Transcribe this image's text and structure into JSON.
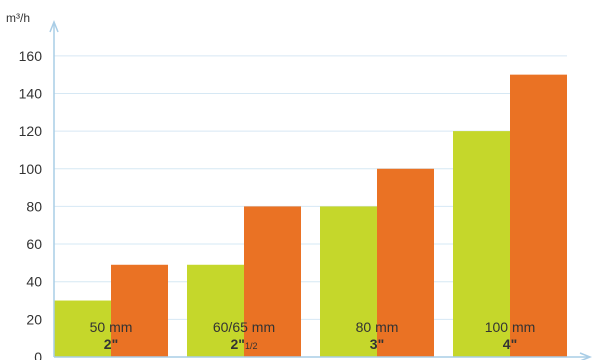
{
  "chart_data": {
    "type": "bar",
    "ylabel": "m³/h",
    "ylim": [
      0,
      170
    ],
    "yticks": [
      0,
      20,
      40,
      60,
      80,
      100,
      120,
      140,
      160
    ],
    "grid": true,
    "categories": [
      {
        "size": "50",
        "unit": "mm",
        "inch": "2\"",
        "fraction": ""
      },
      {
        "size": "60/65",
        "unit": "mm",
        "inch": "2\"",
        "fraction": "1/2"
      },
      {
        "size": "80",
        "unit": "mm",
        "inch": "3\"",
        "fraction": ""
      },
      {
        "size": "100",
        "unit": "mm",
        "inch": "4\"",
        "fraction": ""
      }
    ],
    "series": [
      {
        "values": [
          30,
          49,
          80,
          120
        ],
        "color": "#c5d72b"
      },
      {
        "values": [
          49,
          80,
          100,
          150
        ],
        "color": "#ea7224"
      }
    ],
    "axis_color": "#a9cde6",
    "grid_color": "#d6e8f4"
  }
}
